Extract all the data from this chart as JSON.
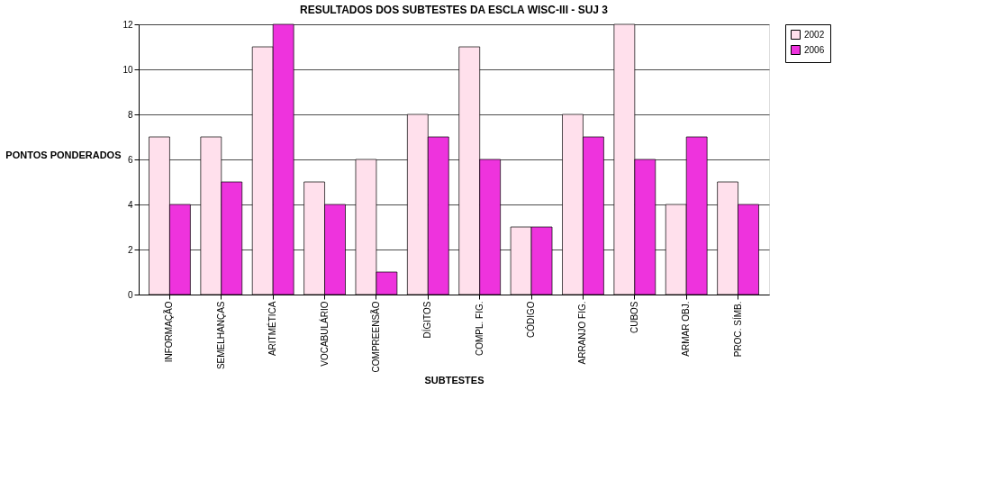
{
  "chart_data": {
    "type": "bar",
    "title": "RESULTADOS DOS SUBTESTES DA ESCLA WISC-III - SUJ 3",
    "xlabel": "SUBTESTES",
    "ylabel": "PONTOS PONDERADOS",
    "categories": [
      "INFORMAÇÃO",
      "SEMELHANÇAS",
      "ARITMÉTICA",
      "VOCABULÁRIO",
      "COMPREENSÃO",
      "DÍGITOS",
      "COMPL. FIG.",
      "CÓDIGO",
      "ARRANJO FIG.",
      "CUBOS",
      "ARMAR OBJ.",
      "PROC. SÍMB."
    ],
    "series": [
      {
        "name": "2002",
        "color": "#ffe0ec",
        "values": [
          7,
          7,
          11,
          5,
          6,
          8,
          11,
          3,
          8,
          12,
          4,
          5
        ]
      },
      {
        "name": "2006",
        "color": "#ee33dd",
        "values": [
          4,
          5,
          12,
          4,
          1,
          7,
          6,
          3,
          7,
          6,
          7,
          4
        ]
      }
    ],
    "ylim": [
      0,
      12
    ],
    "yticks": [
      0,
      2,
      4,
      6,
      8,
      10,
      12
    ],
    "grid": "y",
    "legend": "right"
  }
}
